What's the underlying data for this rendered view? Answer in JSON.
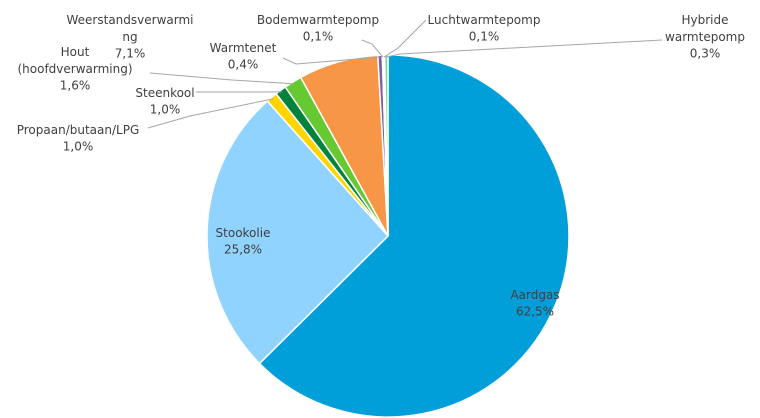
{
  "chart_data": {
    "type": "pie",
    "categories": [
      "Aardgas",
      "Stookolie",
      "Propaan/butaan/LPG",
      "Steenkool",
      "Hout (hoofdverwarming)",
      "Weerstandsverwarming",
      "Warmtenet",
      "Bodemwarmtepomp",
      "Luchtwarmtepomp",
      "Hybride warmtepomp"
    ],
    "values": [
      62.5,
      25.8,
      1.0,
      1.0,
      1.6,
      7.1,
      0.4,
      0.1,
      0.1,
      0.3
    ],
    "value_labels": [
      "62,5%",
      "25,8%",
      "1,0%",
      "1,0%",
      "1,6%",
      "7,1%",
      "0,4%",
      "0,1%",
      "0,1%",
      "0,3%"
    ],
    "colors": [
      "#009fda",
      "#8fd3fe",
      "#ffd500",
      "#00843d",
      "#66c931",
      "#f79646",
      "#7a5fa0",
      "#9b9b9b",
      "#b7e3ea",
      "#7bd6b0"
    ]
  }
}
